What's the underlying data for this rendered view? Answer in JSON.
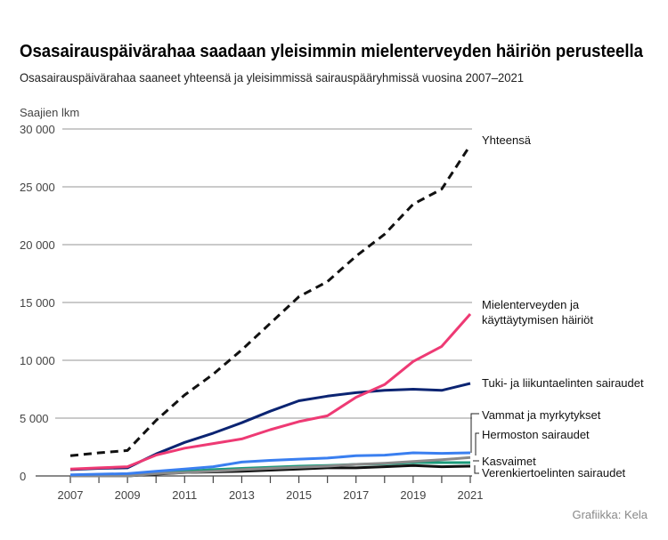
{
  "chart_data": {
    "type": "line",
    "title": "Osasairauspäivärahaa saadaan yleisimmin mielenterveyden häiriön perusteella",
    "subtitle": "Osasairauspäivärahaa saaneet yhteensä ja yleisimmissä sairauspääryhmissä vuosina 2007–2021",
    "ylabel": "Saajien lkm",
    "xlabel": "",
    "ylim": [
      0,
      30000
    ],
    "yticks": [
      0,
      5000,
      10000,
      15000,
      20000,
      25000,
      30000
    ],
    "ytick_labels": [
      "0",
      "5 000",
      "10 000",
      "15 000",
      "20 000",
      "25 000",
      "30 000"
    ],
    "x": [
      2007,
      2008,
      2009,
      2010,
      2011,
      2012,
      2013,
      2014,
      2015,
      2016,
      2017,
      2018,
      2019,
      2020,
      2021
    ],
    "xtick_labels": [
      "2007",
      "2009",
      "2011",
      "2013",
      "2015",
      "2017",
      "2019",
      "2021"
    ],
    "grid": true,
    "legend": "direct labels right",
    "series": [
      {
        "name": "Yhteensä",
        "color": "#111111",
        "dashed": true,
        "label_lines": [
          "Yhteensä"
        ],
        "values": [
          1750,
          2000,
          2200,
          4800,
          7000,
          8800,
          10900,
          13200,
          15500,
          16800,
          19000,
          20900,
          23500,
          24800,
          28600
        ]
      },
      {
        "name": "Mielenterveyden ja käyttäytymisen häiriöt",
        "color": "#ee3a74",
        "label_lines": [
          "Mielenterveyden ja",
          "käyttäytymisen häiriöt"
        ],
        "values": [
          600,
          700,
          800,
          1800,
          2400,
          2800,
          3200,
          4000,
          4700,
          5200,
          6800,
          7900,
          9900,
          11200,
          14000
        ]
      },
      {
        "name": "Tuki- ja liikuntaelinten sairaudet",
        "color": "#0b2472",
        "label_lines": [
          "Tuki- ja liikuntaelinten sairaudet"
        ],
        "values": [
          550,
          650,
          700,
          1900,
          2900,
          3700,
          4600,
          5600,
          6500,
          6900,
          7200,
          7400,
          7500,
          7400,
          8000
        ]
      },
      {
        "name": "Vammat ja myrkytykset",
        "color": "#3a7ff0",
        "label_lines": [
          "Vammat ja myrkytykset"
        ],
        "values": [
          100,
          150,
          200,
          400,
          600,
          800,
          1200,
          1350,
          1450,
          1550,
          1750,
          1800,
          2000,
          1950,
          2000
        ]
      },
      {
        "name": "Hermoston sairaudet",
        "color": "#8a8a8a",
        "label_lines": [
          "Hermoston sairaudet"
        ],
        "values": [
          0,
          0,
          0,
          200,
          300,
          400,
          550,
          650,
          750,
          850,
          1000,
          1100,
          1250,
          1400,
          1600
        ]
      },
      {
        "name": "Kasvaimet",
        "color": "#1a9a7a",
        "label_lines": [
          "Kasvaimet"
        ],
        "values": [
          0,
          0,
          0,
          250,
          400,
          550,
          650,
          750,
          850,
          900,
          1000,
          1050,
          1150,
          1150,
          1150
        ]
      },
      {
        "name": "Verenkiertoelinten sairaudet",
        "color": "#111111",
        "label_lines": [
          "Verenkiertoelinten sairaudet"
        ],
        "values": [
          0,
          0,
          0,
          150,
          300,
          350,
          400,
          500,
          600,
          700,
          700,
          800,
          900,
          800,
          850
        ]
      }
    ],
    "source": "Grafiikka: Kela"
  }
}
